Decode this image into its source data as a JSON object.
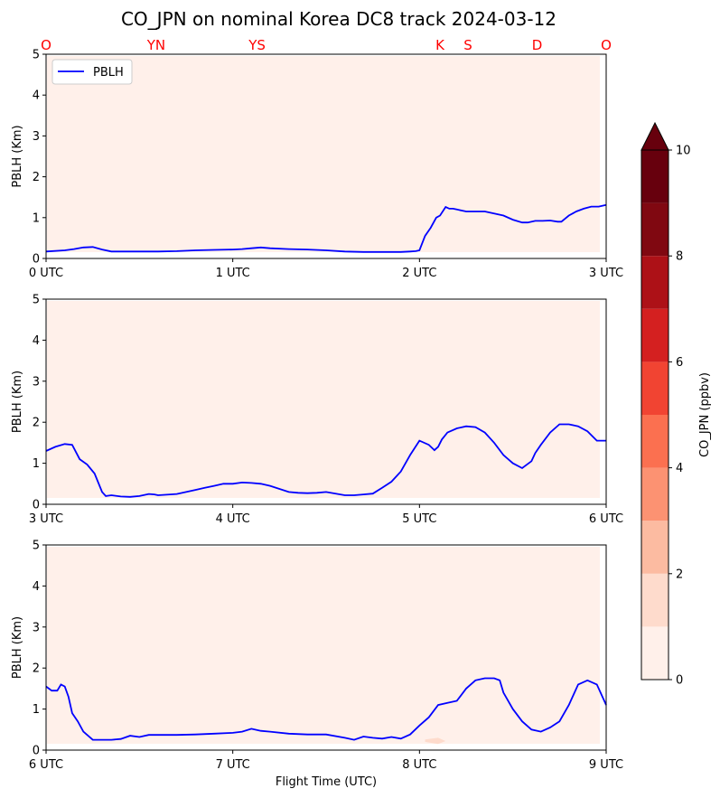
{
  "chart_data": {
    "type": "line",
    "title": "CO_JPN on nominal Korea DC8 track 2024-03-12",
    "xlabel": "Flight Time (UTC)",
    "ylabel": "PBLH (Km)",
    "ylim": [
      0,
      5
    ],
    "yticks": [
      "0",
      "1",
      "2",
      "3",
      "4",
      "5"
    ],
    "legend": {
      "label": "PBLH",
      "placement": "top-left"
    },
    "site_labels": [
      {
        "t": 0.0,
        "label": "O"
      },
      {
        "t": 0.59,
        "label": "YN"
      },
      {
        "t": 1.13,
        "label": "YS"
      },
      {
        "t": 2.11,
        "label": "K"
      },
      {
        "t": 2.26,
        "label": "S"
      },
      {
        "t": 2.63,
        "label": "D"
      },
      {
        "t": 3.0,
        "label": "O"
      }
    ],
    "colorbar": {
      "label": "CO_JPN (ppbv)",
      "ticks": [
        "0",
        "2",
        "4",
        "6",
        "8",
        "10"
      ],
      "levels": [
        0,
        1,
        2,
        3,
        4,
        5,
        6,
        7,
        8,
        9,
        10
      ],
      "colors": [
        "#fff0ea",
        "#fedbcc",
        "#fcbba1",
        "#fc9272",
        "#fb7050",
        "#f14432",
        "#d42020",
        "#ad1117",
        "#800811",
        "#67000d"
      ],
      "extend_color": "#67000d"
    },
    "panels": [
      {
        "xlim": [
          0,
          3
        ],
        "xticks": [
          "0 UTC",
          "1 UTC",
          "2 UTC",
          "3 UTC"
        ],
        "show_legend": true,
        "show_site_labels": true,
        "show_xlabel": false,
        "series": [
          {
            "name": "PBLH",
            "color": "#0000ff",
            "x": [
              0.0,
              0.1,
              0.15,
              0.2,
              0.25,
              0.3,
              0.35,
              0.4,
              0.5,
              0.6,
              0.7,
              0.8,
              0.9,
              1.0,
              1.05,
              1.1,
              1.15,
              1.2,
              1.3,
              1.4,
              1.5,
              1.6,
              1.7,
              1.8,
              1.9,
              1.95,
              1.98,
              2.0,
              2.03,
              2.06,
              2.09,
              2.11,
              2.14,
              2.16,
              2.18,
              2.2,
              2.25,
              2.3,
              2.35,
              2.4,
              2.45,
              2.5,
              2.55,
              2.58,
              2.62,
              2.66,
              2.7,
              2.74,
              2.76,
              2.8,
              2.84,
              2.88,
              2.92,
              2.96,
              3.0
            ],
            "y": [
              0.17,
              0.2,
              0.23,
              0.27,
              0.28,
              0.22,
              0.17,
              0.17,
              0.17,
              0.17,
              0.18,
              0.2,
              0.21,
              0.22,
              0.23,
              0.25,
              0.27,
              0.25,
              0.23,
              0.22,
              0.2,
              0.17,
              0.16,
              0.16,
              0.16,
              0.17,
              0.18,
              0.2,
              0.55,
              0.75,
              1.0,
              1.05,
              1.26,
              1.22,
              1.22,
              1.2,
              1.15,
              1.15,
              1.15,
              1.1,
              1.05,
              0.95,
              0.88,
              0.88,
              0.92,
              0.92,
              0.93,
              0.9,
              0.9,
              1.05,
              1.15,
              1.22,
              1.27,
              1.27,
              1.31
            ]
          }
        ],
        "contours": []
      },
      {
        "xlim": [
          3,
          6
        ],
        "xticks": [
          "3 UTC",
          "4 UTC",
          "5 UTC",
          "6 UTC"
        ],
        "show_legend": false,
        "show_site_labels": false,
        "show_xlabel": false,
        "series": [
          {
            "name": "PBLH",
            "color": "#0000ff",
            "x": [
              3.0,
              3.05,
              3.1,
              3.14,
              3.18,
              3.22,
              3.26,
              3.3,
              3.32,
              3.35,
              3.4,
              3.45,
              3.5,
              3.55,
              3.58,
              3.6,
              3.7,
              3.8,
              3.85,
              3.9,
              3.95,
              4.0,
              4.05,
              4.1,
              4.15,
              4.2,
              4.3,
              4.35,
              4.4,
              4.45,
              4.5,
              4.6,
              4.65,
              4.7,
              4.75,
              4.8,
              4.85,
              4.9,
              4.95,
              5.0,
              5.05,
              5.08,
              5.1,
              5.12,
              5.15,
              5.2,
              5.25,
              5.3,
              5.35,
              5.4,
              5.45,
              5.5,
              5.55,
              5.6,
              5.62,
              5.65,
              5.7,
              5.75,
              5.78,
              5.8,
              5.85,
              5.9,
              5.95,
              6.0
            ],
            "y": [
              1.3,
              1.4,
              1.47,
              1.45,
              1.1,
              0.97,
              0.75,
              0.3,
              0.2,
              0.22,
              0.19,
              0.18,
              0.2,
              0.25,
              0.24,
              0.22,
              0.25,
              0.35,
              0.4,
              0.45,
              0.5,
              0.5,
              0.53,
              0.52,
              0.5,
              0.45,
              0.3,
              0.28,
              0.27,
              0.28,
              0.3,
              0.22,
              0.22,
              0.24,
              0.26,
              0.4,
              0.55,
              0.8,
              1.2,
              1.55,
              1.45,
              1.32,
              1.4,
              1.58,
              1.75,
              1.85,
              1.9,
              1.88,
              1.75,
              1.5,
              1.2,
              1.0,
              0.88,
              1.05,
              1.25,
              1.45,
              1.75,
              1.95,
              1.95,
              1.95,
              1.9,
              1.78,
              1.55,
              1.55
            ]
          }
        ],
        "contours": []
      },
      {
        "xlim": [
          6,
          9
        ],
        "xticks": [
          "6 UTC",
          "7 UTC",
          "8 UTC",
          "9 UTC"
        ],
        "show_legend": false,
        "show_site_labels": false,
        "show_xlabel": true,
        "series": [
          {
            "name": "PBLH",
            "color": "#0000ff",
            "x": [
              6.0,
              6.03,
              6.06,
              6.08,
              6.1,
              6.12,
              6.14,
              6.17,
              6.2,
              6.25,
              6.3,
              6.35,
              6.4,
              6.45,
              6.5,
              6.55,
              6.6,
              6.65,
              6.7,
              6.8,
              6.9,
              7.0,
              7.05,
              7.1,
              7.15,
              7.2,
              7.3,
              7.4,
              7.5,
              7.6,
              7.65,
              7.7,
              7.75,
              7.8,
              7.85,
              7.9,
              7.95,
              8.0,
              8.05,
              8.1,
              8.15,
              8.2,
              8.25,
              8.3,
              8.35,
              8.4,
              8.43,
              8.45,
              8.5,
              8.55,
              8.6,
              8.65,
              8.7,
              8.75,
              8.8,
              8.85,
              8.9,
              8.95,
              9.0
            ],
            "y": [
              1.55,
              1.45,
              1.45,
              1.6,
              1.55,
              1.3,
              0.9,
              0.7,
              0.45,
              0.25,
              0.25,
              0.25,
              0.27,
              0.35,
              0.32,
              0.37,
              0.37,
              0.37,
              0.37,
              0.38,
              0.4,
              0.42,
              0.45,
              0.52,
              0.47,
              0.45,
              0.4,
              0.38,
              0.38,
              0.3,
              0.25,
              0.33,
              0.3,
              0.28,
              0.32,
              0.28,
              0.38,
              0.6,
              0.8,
              1.1,
              1.15,
              1.2,
              1.5,
              1.7,
              1.75,
              1.75,
              1.7,
              1.4,
              1.0,
              0.7,
              0.5,
              0.45,
              0.55,
              0.7,
              1.1,
              1.6,
              1.7,
              1.6,
              1.1
            ]
          }
        ],
        "contours": [
          {
            "level_index": 1,
            "x": [
              8.03,
              8.1,
              8.14,
              8.1,
              8.03
            ],
            "y": [
              0.26,
              0.3,
              0.22,
              0.15,
              0.2
            ]
          }
        ]
      }
    ]
  }
}
